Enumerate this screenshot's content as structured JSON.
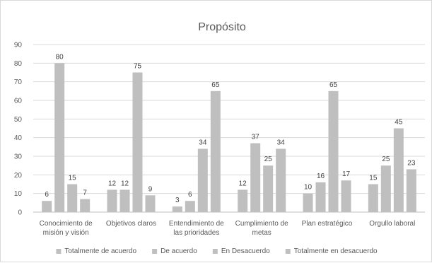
{
  "chart_data": {
    "type": "bar",
    "title": "Propósito",
    "xlabel": "",
    "ylabel": "",
    "ylim": [
      0,
      90
    ],
    "yticks": [
      0,
      10,
      20,
      30,
      40,
      50,
      60,
      70,
      80,
      90
    ],
    "grid": true,
    "legend_position": "bottom",
    "categories": [
      [
        "Conocimiento de",
        "misión y visión"
      ],
      [
        "Objetivos claros"
      ],
      [
        "Entendimiento de",
        "las prioridades"
      ],
      [
        "Cumplimiento de",
        "metas"
      ],
      [
        "Plan estratégico"
      ],
      [
        "Orgullo laboral"
      ]
    ],
    "series": [
      {
        "name": "Totalmente de acuerdo",
        "values": [
          6,
          12,
          3,
          12,
          10,
          15
        ]
      },
      {
        "name": "De acuerdo",
        "values": [
          80,
          12,
          6,
          37,
          16,
          25
        ]
      },
      {
        "name": "En Desacuerdo",
        "values": [
          15,
          75,
          34,
          25,
          65,
          45
        ]
      },
      {
        "name": "Totalmente en desacuerdo",
        "values": [
          7,
          9,
          65,
          34,
          17,
          23
        ]
      }
    ],
    "colors": {
      "bar": "#bfbfbf",
      "grid": "#d9d9d9",
      "axis": "#bfbfbf",
      "text": "#595959"
    }
  }
}
